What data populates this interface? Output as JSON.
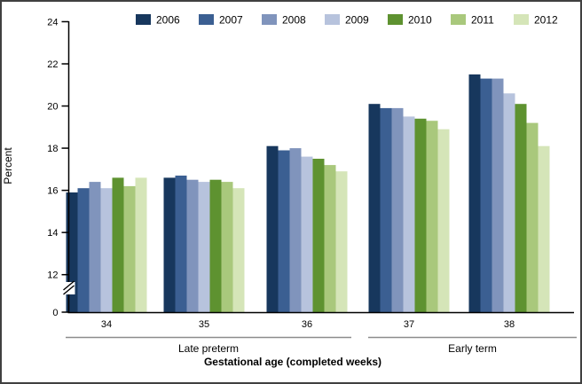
{
  "figure": {
    "ylabel": "Percent",
    "xlabel": "Gestational age (completed weeks)",
    "group_brackets": [
      {
        "label": "Late preterm",
        "weeks": [
          "34",
          "35",
          "36"
        ]
      },
      {
        "label": "Early term",
        "weeks": [
          "37",
          "38"
        ]
      }
    ],
    "border_color": "#404040",
    "bracket_line_color": "#8c8c8c",
    "axis_color": "#000000"
  },
  "chart_data": {
    "type": "bar",
    "title": "",
    "xlabel": "Gestational age (completed weeks)",
    "ylabel": "Percent",
    "categories": [
      "34",
      "35",
      "36",
      "37",
      "38"
    ],
    "series": [
      {
        "name": "2006",
        "color": "#17375d",
        "values": [
          15.9,
          16.6,
          18.1,
          20.1,
          21.5
        ]
      },
      {
        "name": "2007",
        "color": "#3b5f92",
        "values": [
          16.1,
          16.7,
          17.9,
          19.9,
          21.3
        ]
      },
      {
        "name": "2008",
        "color": "#8094bc",
        "values": [
          16.4,
          16.5,
          18.0,
          19.9,
          21.3
        ]
      },
      {
        "name": "2009",
        "color": "#b7c3dd",
        "values": [
          16.1,
          16.4,
          17.6,
          19.5,
          20.6
        ]
      },
      {
        "name": "2010",
        "color": "#5e9230",
        "values": [
          16.6,
          16.5,
          17.5,
          19.4,
          20.1
        ]
      },
      {
        "name": "2011",
        "color": "#a9c87c",
        "values": [
          16.2,
          16.4,
          17.2,
          19.3,
          19.2
        ]
      },
      {
        "name": "2012",
        "color": "#d5e5b8",
        "values": [
          16.6,
          16.1,
          16.9,
          18.9,
          18.1
        ]
      }
    ],
    "yticks": [
      0,
      12,
      14,
      16,
      18,
      20,
      22,
      24
    ],
    "ylim": [
      0,
      24
    ],
    "axis_break": true,
    "grid": false,
    "legend_position": "top"
  }
}
